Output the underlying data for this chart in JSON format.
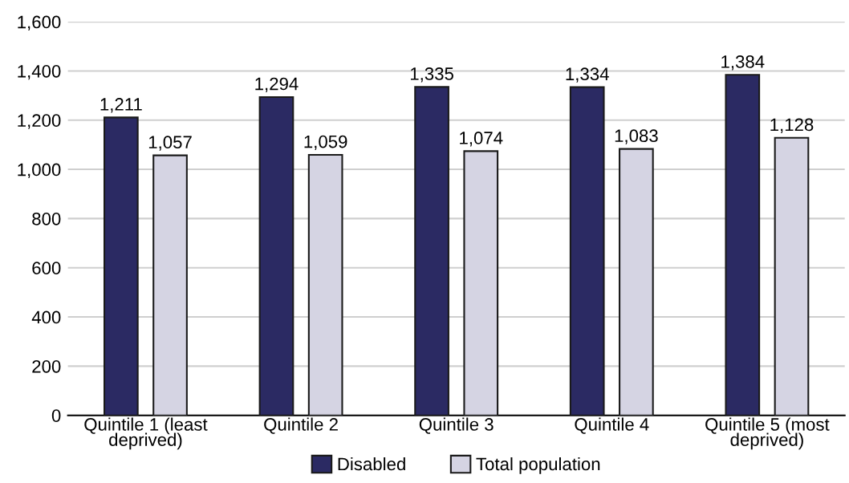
{
  "chart_data": {
    "type": "bar",
    "categories": [
      "Quintile 1 (least\ndeprived)",
      "Quintile 2",
      "Quintile 3",
      "Quintile 4",
      "Quintile 5 (most\ndeprived)"
    ],
    "series": [
      {
        "name": "Disabled",
        "color": "#2b2a63",
        "values": [
          1211,
          1294,
          1335,
          1334,
          1384
        ],
        "value_labels": [
          "1,211",
          "1,294",
          "1,335",
          "1,334",
          "1,384"
        ]
      },
      {
        "name": "Total population",
        "color": "#d5d4e3",
        "values": [
          1057,
          1059,
          1074,
          1083,
          1128
        ],
        "value_labels": [
          "1,057",
          "1,059",
          "1,074",
          "1,083",
          "1,128"
        ]
      }
    ],
    "ylim": [
      0,
      1600
    ],
    "yticks": [
      0,
      200,
      400,
      600,
      800,
      {
        "value": 1000,
        "label": "1,000"
      },
      {
        "value": 1200,
        "label": "1,200"
      },
      {
        "value": 1400,
        "label": "1,400"
      },
      {
        "value": 1600,
        "label": "1,600"
      }
    ],
    "grid": "y",
    "legend": "bottom"
  }
}
